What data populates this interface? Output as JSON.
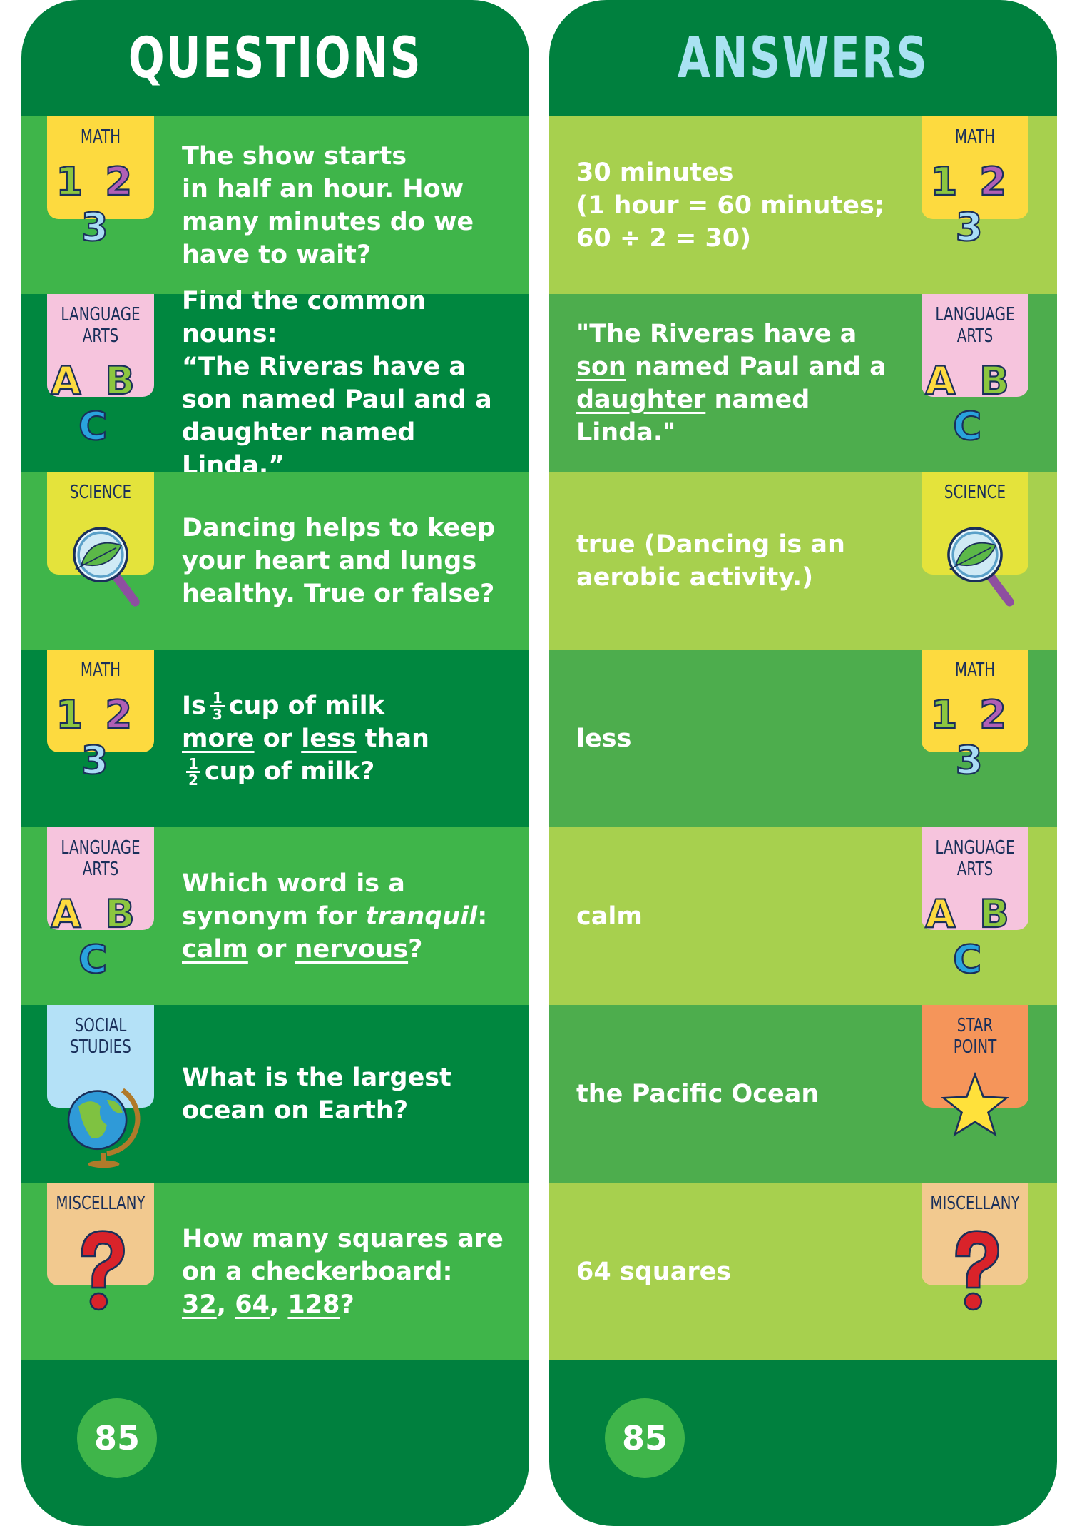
{
  "questions_title": "QUESTIONS",
  "answers_title": "ANSWERS",
  "page_number": "85",
  "colors": {
    "dark_green": "#00803e",
    "mid_green": "#3fb54a",
    "lime": "#a7d04e",
    "answers_title": "#a9e2f2"
  },
  "rows": [
    {
      "q_category": {
        "label": [
          "MATH"
        ],
        "icon": "numbers-123-icon",
        "color": "#fdda3f"
      },
      "question": [
        [
          {
            "t": "The show starts"
          }
        ],
        [
          {
            "t": "in half an hour. How"
          }
        ],
        [
          {
            "t": "many minutes do we"
          }
        ],
        [
          {
            "t": "have to wait?"
          }
        ]
      ],
      "a_category": {
        "label": [
          "MATH"
        ],
        "icon": "numbers-123-icon",
        "color": "#fdda3f"
      },
      "answer": [
        [
          {
            "t": "30 minutes"
          }
        ],
        [
          {
            "t": "(1 hour = 60 minutes;"
          }
        ],
        [
          {
            "t": "60 ÷ 2 = 30)"
          }
        ]
      ]
    },
    {
      "q_category": {
        "label": [
          "LANGUAGE",
          "ARTS"
        ],
        "icon": "letters-abc-icon",
        "color": "#f6c4dd"
      },
      "question": [
        [
          {
            "t": "Find the common nouns:"
          }
        ],
        [
          {
            "t": "“The Riveras have a"
          }
        ],
        [
          {
            "t": "son named Paul and a"
          }
        ],
        [
          {
            "t": "daughter named Linda.”"
          }
        ]
      ],
      "a_category": {
        "label": [
          "LANGUAGE",
          "ARTS"
        ],
        "icon": "letters-abc-icon",
        "color": "#f6c4dd"
      },
      "answer": [
        [
          {
            "t": "\"The Riveras have a"
          }
        ],
        [
          {
            "t": "son",
            "u": true
          },
          {
            "t": " named Paul and a"
          }
        ],
        [
          {
            "t": "daughter",
            "u": true
          },
          {
            "t": " named Linda.\""
          }
        ]
      ]
    },
    {
      "q_category": {
        "label": [
          "SCIENCE"
        ],
        "icon": "magnifier-leaf-icon",
        "color": "#e4e33b"
      },
      "question": [
        [
          {
            "t": "Dancing helps to keep"
          }
        ],
        [
          {
            "t": "your heart and lungs"
          }
        ],
        [
          {
            "t": "healthy. True or false?"
          }
        ]
      ],
      "a_category": {
        "label": [
          "SCIENCE"
        ],
        "icon": "magnifier-leaf-icon",
        "color": "#e4e33b"
      },
      "answer": [
        [
          {
            "t": "true (Dancing is an"
          }
        ],
        [
          {
            "t": "aerobic activity.)"
          }
        ]
      ]
    },
    {
      "q_category": {
        "label": [
          "MATH"
        ],
        "icon": "numbers-123-icon",
        "color": "#fdda3f"
      },
      "question": [
        [
          {
            "t": "Is"
          },
          {
            "frac": [
              "1",
              "3"
            ]
          },
          {
            "t": "cup of milk"
          }
        ],
        [
          {
            "t": "more",
            "u": true
          },
          {
            "t": " or "
          },
          {
            "t": "less",
            "u": true
          },
          {
            "t": " than"
          }
        ],
        [
          {
            "frac": [
              "1",
              "2"
            ]
          },
          {
            "t": "cup of milk?"
          }
        ]
      ],
      "a_category": {
        "label": [
          "MATH"
        ],
        "icon": "numbers-123-icon",
        "color": "#fdda3f"
      },
      "answer": [
        [
          {
            "t": "less"
          }
        ]
      ]
    },
    {
      "q_category": {
        "label": [
          "LANGUAGE",
          "ARTS"
        ],
        "icon": "letters-abc-icon",
        "color": "#f6c4dd"
      },
      "question": [
        [
          {
            "t": "Which word is a"
          }
        ],
        [
          {
            "t": "synonym for "
          },
          {
            "t": "tranquil",
            "i": true
          },
          {
            "t": ":"
          }
        ],
        [
          {
            "t": "calm",
            "u": true
          },
          {
            "t": " or "
          },
          {
            "t": "nervous",
            "u": true
          },
          {
            "t": "?"
          }
        ]
      ],
      "a_category": {
        "label": [
          "LANGUAGE",
          "ARTS"
        ],
        "icon": "letters-abc-icon",
        "color": "#f6c4dd"
      },
      "answer": [
        [
          {
            "t": "calm"
          }
        ]
      ]
    },
    {
      "q_category": {
        "label": [
          "SOCIAL",
          "STUDIES"
        ],
        "icon": "globe-icon",
        "color": "#b4e1f7"
      },
      "question": [
        [
          {
            "t": "What is the largest"
          }
        ],
        [
          {
            "t": "ocean on Earth?"
          }
        ]
      ],
      "a_category": {
        "label": [
          "STAR",
          "POINT"
        ],
        "icon": "star-icon",
        "color": "#f5955a"
      },
      "answer": [
        [
          {
            "t": "the Pacific Ocean"
          }
        ]
      ]
    },
    {
      "q_category": {
        "label": [
          "MISCELLANY"
        ],
        "icon": "question-mark-icon",
        "color": "#f2c98f"
      },
      "question": [
        [
          {
            "t": "How many squares are"
          }
        ],
        [
          {
            "t": "on a checkerboard:"
          }
        ],
        [
          {
            "t": "32",
            "u": true
          },
          {
            "t": ", "
          },
          {
            "t": "64",
            "u": true
          },
          {
            "t": ", "
          },
          {
            "t": "128",
            "u": true
          },
          {
            "t": "?"
          }
        ]
      ],
      "a_category": {
        "label": [
          "MISCELLANY"
        ],
        "icon": "question-mark-icon",
        "color": "#f2c98f"
      },
      "answer": [
        [
          {
            "t": "64 squares"
          }
        ]
      ]
    }
  ]
}
